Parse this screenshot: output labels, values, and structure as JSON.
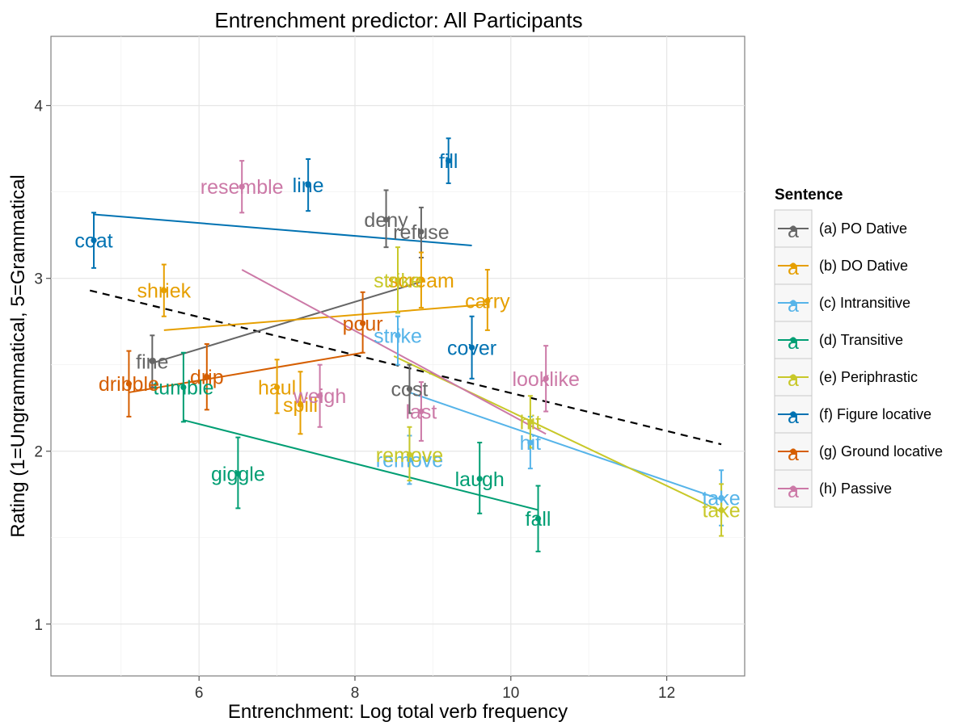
{
  "chart_data": {
    "type": "scatter",
    "title": "Entrenchment predictor: All Participants",
    "xlabel": "Entrenchment: Log total verb frequency",
    "ylabel": "Rating (1=Ungrammatical, 5=Grammatical",
    "xlim": [
      4.1,
      13.0
    ],
    "ylim": [
      0.7,
      4.4
    ],
    "x_ticks": [
      6,
      8,
      10,
      12
    ],
    "y_ticks": [
      1,
      2,
      3,
      4
    ],
    "grid": true,
    "legend": {
      "title": "Sentence",
      "position": "right",
      "key_glyph": "a"
    },
    "overall_trend": {
      "style": "dashed",
      "color": "#000000",
      "x": [
        4.6,
        12.7
      ],
      "y": [
        2.93,
        2.04
      ]
    },
    "series": [
      {
        "name": "(a) PO Dative",
        "color": "#666666",
        "fit": {
          "x": [
            5.4,
            8.85
          ],
          "y": [
            2.51,
            2.98
          ]
        },
        "points": [
          {
            "label": "fine",
            "x": 5.4,
            "y": 2.52,
            "lo": 2.37,
            "hi": 2.67
          },
          {
            "label": "deny",
            "x": 8.4,
            "y": 3.34,
            "lo": 3.18,
            "hi": 3.51
          },
          {
            "label": "refuse",
            "x": 8.85,
            "y": 3.27,
            "lo": 3.12,
            "hi": 3.41
          },
          {
            "label": "cost",
            "x": 8.7,
            "y": 2.36,
            "lo": 2.22,
            "hi": 2.5
          }
        ]
      },
      {
        "name": "(b) DO Dative",
        "color": "#E69F00",
        "fit": {
          "x": [
            5.55,
            9.7
          ],
          "y": [
            2.7,
            2.85
          ]
        },
        "points": [
          {
            "label": "shriek",
            "x": 5.55,
            "y": 2.93,
            "lo": 2.78,
            "hi": 3.08
          },
          {
            "label": "haul",
            "x": 7.0,
            "y": 2.37,
            "lo": 2.22,
            "hi": 2.53
          },
          {
            "label": "spill",
            "x": 7.3,
            "y": 2.27,
            "lo": 2.1,
            "hi": 2.46
          },
          {
            "label": "scream",
            "x": 8.85,
            "y": 2.99,
            "lo": 2.83,
            "hi": 3.15
          },
          {
            "label": "carry",
            "x": 9.7,
            "y": 2.87,
            "lo": 2.7,
            "hi": 3.05
          }
        ]
      },
      {
        "name": "(c) Intransitive",
        "color": "#56B4E9",
        "fit": {
          "x": [
            8.7,
            12.7
          ],
          "y": [
            2.34,
            1.72
          ]
        },
        "points": [
          {
            "label": "strike",
            "x": 8.55,
            "y": 2.67,
            "lo": 2.5,
            "hi": 2.78
          },
          {
            "label": "remove",
            "x": 8.7,
            "y": 1.95,
            "lo": 1.81,
            "hi": 2.09
          },
          {
            "label": "hit",
            "x": 10.25,
            "y": 2.05,
            "lo": 1.9,
            "hi": 2.2
          },
          {
            "label": "take",
            "x": 12.7,
            "y": 1.73,
            "lo": 1.57,
            "hi": 1.89
          }
        ]
      },
      {
        "name": "(d) Transitive",
        "color": "#009E73",
        "fit": {
          "x": [
            5.8,
            10.35
          ],
          "y": [
            2.18,
            1.66
          ]
        },
        "points": [
          {
            "label": "tumble",
            "x": 5.8,
            "y": 2.37,
            "lo": 2.17,
            "hi": 2.57
          },
          {
            "label": "giggle",
            "x": 6.5,
            "y": 1.87,
            "lo": 1.67,
            "hi": 2.08
          },
          {
            "label": "laugh",
            "x": 9.6,
            "y": 1.84,
            "lo": 1.64,
            "hi": 2.05
          },
          {
            "label": "fall",
            "x": 10.35,
            "y": 1.61,
            "lo": 1.42,
            "hi": 1.8
          }
        ]
      },
      {
        "name": "(e) Periphrastic",
        "color": "#C8C829",
        "fit": {
          "x": [
            8.5,
            12.7
          ],
          "y": [
            2.55,
            1.65
          ]
        },
        "points": [
          {
            "label": "strike",
            "x": 8.55,
            "y": 2.99,
            "lo": 2.8,
            "hi": 3.18
          },
          {
            "label": "remove",
            "x": 8.7,
            "y": 1.98,
            "lo": 1.83,
            "hi": 2.14
          },
          {
            "label": "hit",
            "x": 10.25,
            "y": 2.17,
            "lo": 2.02,
            "hi": 2.32
          },
          {
            "label": "take",
            "x": 12.7,
            "y": 1.66,
            "lo": 1.51,
            "hi": 1.81
          }
        ]
      },
      {
        "name": "(f) Figure locative",
        "color": "#0072B2",
        "fit": {
          "x": [
            4.65,
            9.5
          ],
          "y": [
            3.37,
            3.19
          ]
        },
        "points": [
          {
            "label": "coat",
            "x": 4.65,
            "y": 3.22,
            "lo": 3.06,
            "hi": 3.38
          },
          {
            "label": "line",
            "x": 7.4,
            "y": 3.54,
            "lo": 3.39,
            "hi": 3.69
          },
          {
            "label": "fill",
            "x": 9.2,
            "y": 3.68,
            "lo": 3.55,
            "hi": 3.81
          },
          {
            "label": "cover",
            "x": 9.5,
            "y": 2.6,
            "lo": 2.42,
            "hi": 2.78
          }
        ]
      },
      {
        "name": "(g) Ground locative",
        "color": "#D55E00",
        "fit": {
          "x": [
            5.1,
            8.1
          ],
          "y": [
            2.34,
            2.57
          ]
        },
        "points": [
          {
            "label": "dribble",
            "x": 5.1,
            "y": 2.39,
            "lo": 2.2,
            "hi": 2.58
          },
          {
            "label": "drip",
            "x": 6.1,
            "y": 2.43,
            "lo": 2.24,
            "hi": 2.62
          },
          {
            "label": "pour",
            "x": 8.1,
            "y": 2.74,
            "lo": 2.57,
            "hi": 2.92
          }
        ]
      },
      {
        "name": "(h) Passive",
        "color": "#CC79A7",
        "fit": {
          "x": [
            6.55,
            10.45
          ],
          "y": [
            3.05,
            2.1
          ]
        },
        "points": [
          {
            "label": "resemble",
            "x": 6.55,
            "y": 3.53,
            "lo": 3.38,
            "hi": 3.68
          },
          {
            "label": "weigh",
            "x": 7.55,
            "y": 2.32,
            "lo": 2.14,
            "hi": 2.5
          },
          {
            "label": "last",
            "x": 8.85,
            "y": 2.23,
            "lo": 2.06,
            "hi": 2.4
          },
          {
            "label": "looklike",
            "x": 10.45,
            "y": 2.42,
            "lo": 2.23,
            "hi": 2.61
          }
        ]
      }
    ]
  }
}
